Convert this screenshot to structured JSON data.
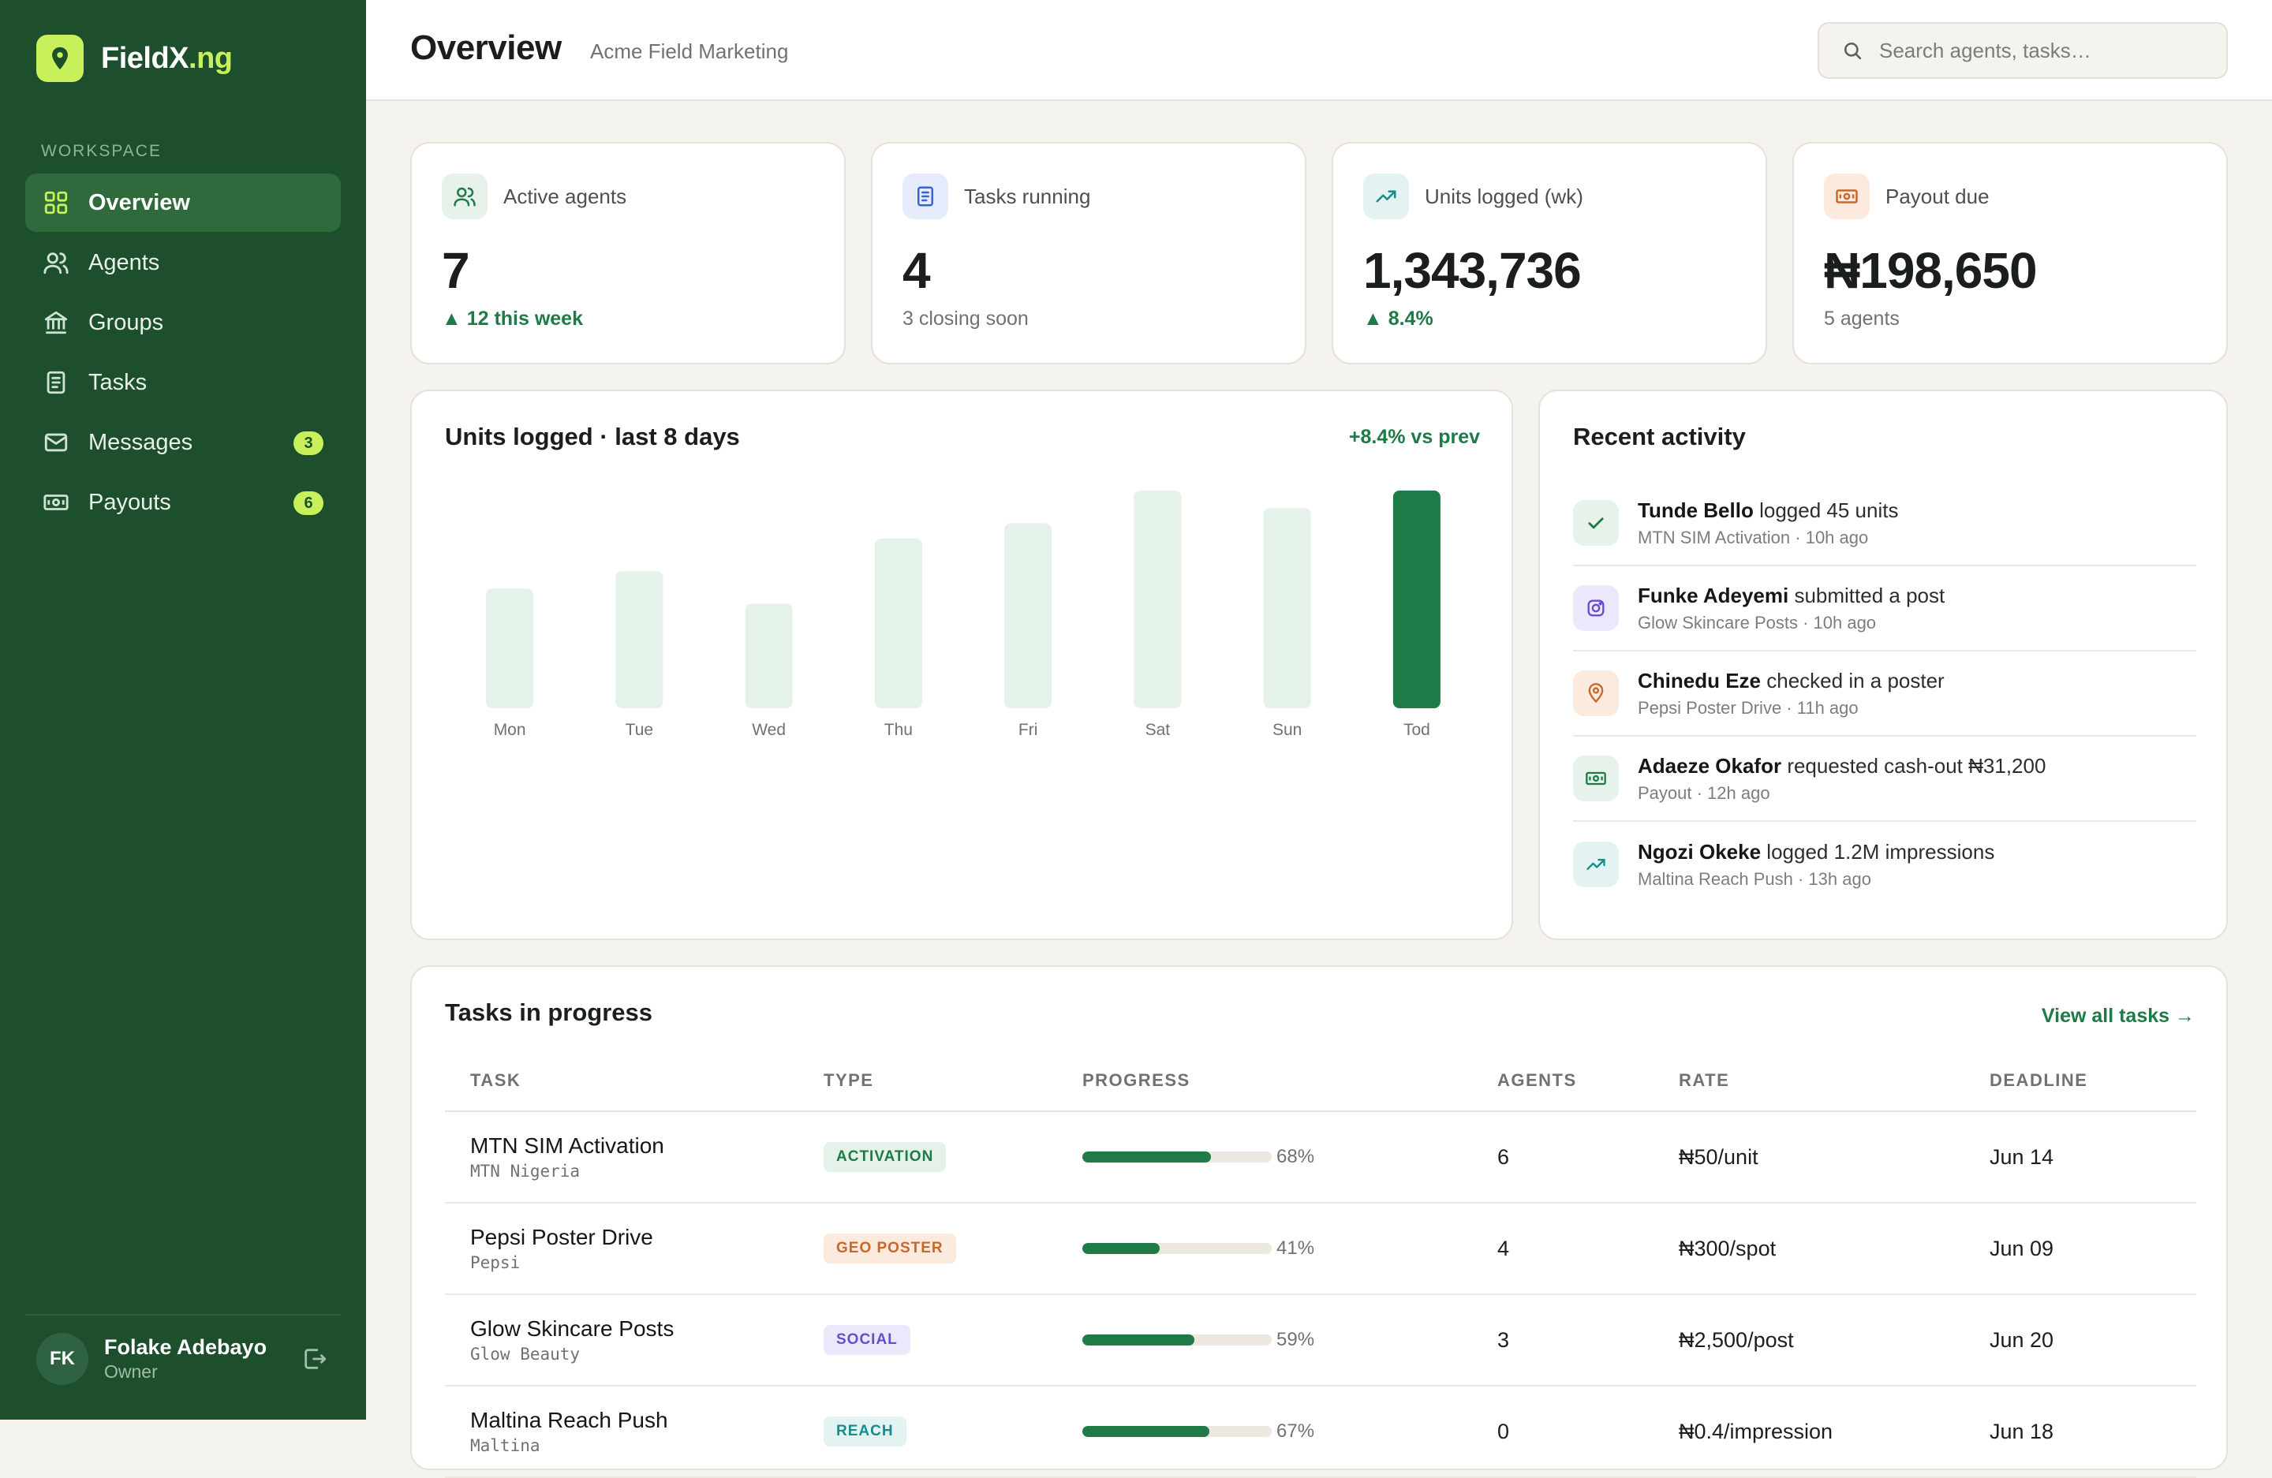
{
  "app": {
    "logo_main": "FieldX",
    "logo_suffix": ".ng"
  },
  "sidebar": {
    "section_label": "WORKSPACE",
    "items": [
      {
        "label": "Overview",
        "icon": "grid-icon",
        "active": true
      },
      {
        "label": "Agents",
        "icon": "users-icon"
      },
      {
        "label": "Groups",
        "icon": "bank-icon"
      },
      {
        "label": "Tasks",
        "icon": "document-icon"
      },
      {
        "label": "Messages",
        "icon": "mail-icon",
        "badge": "3"
      },
      {
        "label": "Payouts",
        "icon": "cash-icon",
        "badge": "6"
      }
    ],
    "user": {
      "initials": "FK",
      "name": "Folake Adebayo",
      "role": "Owner"
    }
  },
  "header": {
    "title": "Overview",
    "subtitle": "Acme Field Marketing",
    "search_placeholder": "Search agents, tasks…"
  },
  "stats": [
    {
      "label": "Active agents",
      "value": "7",
      "foot": "▲ 12 this week",
      "foot_up": true,
      "icon": "users-icon",
      "icon_bg": "#e6f2ea",
      "icon_color": "#1e7a46"
    },
    {
      "label": "Tasks running",
      "value": "4",
      "foot": "3 closing soon",
      "foot_up": false,
      "icon": "document-icon",
      "icon_bg": "#e6ecfb",
      "icon_color": "#3b63d0"
    },
    {
      "label": "Units logged (wk)",
      "value": "1,343,736",
      "foot": "▲ 8.4%",
      "foot_up": true,
      "icon": "trend-up-icon",
      "icon_bg": "#e2f3f2",
      "icon_color": "#1a8c88"
    },
    {
      "label": "Payout due",
      "value": "₦198,650",
      "foot": "5 agents",
      "foot_up": false,
      "icon": "cash-icon",
      "icon_bg": "#fbeadd",
      "icon_color": "#c9672a"
    }
  ],
  "chart": {
    "title": "Units logged · last 8 days",
    "delta": "+8.4% vs prev"
  },
  "chart_data": {
    "type": "bar",
    "title": "Units logged · last 8 days",
    "categories": [
      "Mon",
      "Tue",
      "Wed",
      "Thu",
      "Fri",
      "Sat",
      "Sun",
      "Tod"
    ],
    "values": [
      55,
      63,
      48,
      78,
      85,
      100,
      92,
      100
    ],
    "highlight_index": 7,
    "ylim": [
      0,
      100
    ],
    "grid": false,
    "colors": {
      "bar": "#e4f2ea",
      "highlight": "#1e7a46"
    }
  },
  "activity": {
    "title": "Recent activity",
    "items": [
      {
        "name": "Tunde Bello",
        "action": "logged 45 units",
        "meta": "MTN SIM Activation · 10h ago",
        "icon": "check-icon",
        "icon_bg": "#e6f2ea",
        "icon_color": "#1e7a46"
      },
      {
        "name": "Funke Adeyemi",
        "action": "submitted a post",
        "meta": "Glow Skincare Posts · 10h ago",
        "icon": "instagram-icon",
        "icon_bg": "#ece8fb",
        "icon_color": "#6a4bd0"
      },
      {
        "name": "Chinedu Eze",
        "action": "checked in a poster",
        "meta": "Pepsi Poster Drive · 11h ago",
        "icon": "map-pin-icon",
        "icon_bg": "#fbeadd",
        "icon_color": "#c9672a"
      },
      {
        "name": "Adaeze Okafor",
        "action": "requested cash-out ₦31,200",
        "meta": "Payout · 12h ago",
        "icon": "cash-icon",
        "icon_bg": "#e6f2ea",
        "icon_color": "#1e7a46"
      },
      {
        "name": "Ngozi Okeke",
        "action": "logged 1.2M impressions",
        "meta": "Maltina Reach Push · 13h ago",
        "icon": "trend-up-icon",
        "icon_bg": "#e2f3f2",
        "icon_color": "#1a8c88"
      }
    ]
  },
  "tasks": {
    "title": "Tasks in progress",
    "view_all": "View all tasks →",
    "columns": [
      "TASK",
      "TYPE",
      "PROGRESS",
      "AGENTS",
      "RATE",
      "DEADLINE"
    ],
    "rows": [
      {
        "name": "MTN SIM Activation",
        "client": "MTN Nigeria",
        "type": "ACTIVATION",
        "type_bg": "#e4f2ea",
        "type_color": "#1e7a46",
        "progress": 68,
        "progress_label": "68%",
        "agents": "6",
        "rate": "₦50/unit",
        "deadline": "Jun 14"
      },
      {
        "name": "Pepsi Poster Drive",
        "client": "Pepsi",
        "type": "GEO POSTER",
        "type_bg": "#fbeadd",
        "type_color": "#c9672a",
        "progress": 41,
        "progress_label": "41%",
        "agents": "4",
        "rate": "₦300/spot",
        "deadline": "Jun 09"
      },
      {
        "name": "Glow Skincare Posts",
        "client": "Glow Beauty",
        "type": "SOCIAL",
        "type_bg": "#ece8fb",
        "type_color": "#6a4bd0",
        "progress": 59,
        "progress_label": "59%",
        "agents": "3",
        "rate": "₦2,500/post",
        "deadline": "Jun 20"
      },
      {
        "name": "Maltina Reach Push",
        "client": "Maltina",
        "type": "REACH",
        "type_bg": "#e2f3f2",
        "type_color": "#1a8c88",
        "progress": 67,
        "progress_label": "67%",
        "agents": "0",
        "rate": "₦0.4/impression",
        "deadline": "Jun 18"
      }
    ]
  }
}
